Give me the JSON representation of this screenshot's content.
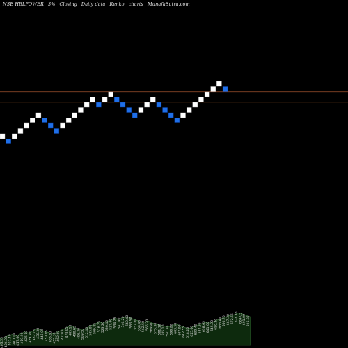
{
  "header": {
    "symbol": "NSE HBLPOWER",
    "box_size": "3%",
    "closing": "Closing",
    "interval": "Daily data",
    "chart_kind": "Renko",
    "charts": "charts",
    "site": "MunafaSutra.com"
  },
  "colors": {
    "background": "#000000",
    "up_brick": "#ffffff",
    "down_brick": "#1f6fe8",
    "ref_line_1": "#a0522d",
    "ref_line_2": "#c87533",
    "volume_fill": "#0d2a0d",
    "volume_edge": "#3f7f3f"
  },
  "chart_data": {
    "type": "renko",
    "bricks": [
      "up",
      "down",
      "up",
      "up",
      "up",
      "up",
      "up",
      "down",
      "down",
      "down",
      "up",
      "up",
      "up",
      "up",
      "up",
      "up",
      "down",
      "up",
      "up",
      "down",
      "down",
      "down",
      "down",
      "up",
      "up",
      "up",
      "down",
      "down",
      "down",
      "down",
      "up",
      "up",
      "up",
      "up",
      "up",
      "up",
      "up",
      "down"
    ],
    "reference_lines": [
      1.0,
      -1.0
    ],
    "volume_x_labels": [
      "403.55",
      "406.90",
      "407.40",
      "410.10",
      "417.60",
      "419.90",
      "425.10",
      "429.90",
      "432.75",
      "438.30",
      "445.05",
      "452.85",
      "458.60",
      "455.30",
      "462.60",
      "470.00",
      "478.05",
      "485.10",
      "490.85",
      "496.30",
      "509.50",
      "512.40",
      "505.00",
      "509.85",
      "516.25",
      "523.20",
      "530.45",
      "537.90",
      "534.25",
      "541.90",
      "546.20",
      "549.40",
      "553.50",
      "557.60",
      "560.40",
      "562.50",
      "565.20",
      "569.40",
      "575.30",
      "581.10",
      "585.10",
      "590.80",
      "598.20",
      "603.50",
      "607.90",
      "612.55",
      "618.20",
      "625.00",
      "630.40",
      "634.55",
      "638.65",
      "641.00",
      "645.90",
      "650.20",
      "655.40",
      "660.70",
      "667.30",
      "672.55",
      "678.15",
      "684.05",
      "691.00",
      "696.85"
    ],
    "volume_levels": [
      0.18,
      0.2,
      0.25,
      0.28,
      0.24,
      0.3,
      0.35,
      0.32,
      0.38,
      0.42,
      0.4,
      0.36,
      0.33,
      0.3,
      0.35,
      0.4,
      0.45,
      0.5,
      0.47,
      0.42,
      0.4,
      0.44,
      0.5,
      0.55,
      0.6,
      0.58,
      0.62,
      0.66,
      0.7,
      0.68,
      0.72,
      0.75,
      0.7,
      0.66,
      0.62,
      0.6,
      0.64,
      0.58,
      0.55,
      0.52,
      0.5,
      0.48,
      0.52,
      0.55,
      0.5,
      0.46,
      0.44,
      0.48,
      0.52,
      0.56,
      0.6,
      0.58,
      0.62,
      0.66,
      0.7,
      0.74,
      0.78,
      0.8,
      0.85,
      0.82,
      0.78,
      0.74
    ]
  }
}
